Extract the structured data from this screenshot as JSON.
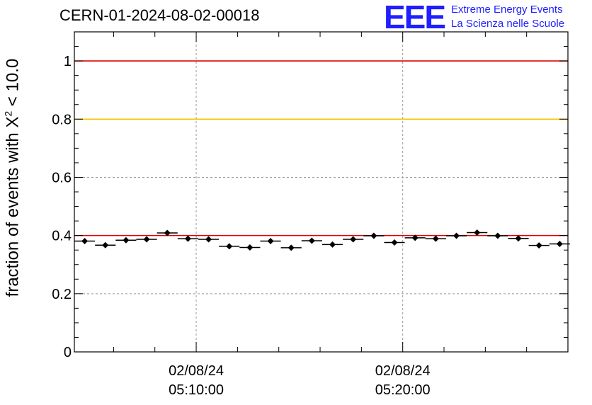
{
  "header": {
    "run_id": "CERN-01-2024-08-02-00018",
    "logo_mark": "EEE",
    "logo_line1": "Extreme Energy Events",
    "logo_line2": "La Scienza nelle Scuole"
  },
  "chart_data": {
    "type": "scatter",
    "title": "CERN-01-2024-08-02-00018",
    "ylabel_prefix": "fraction of events with X",
    "ylabel_exponent": "2",
    "ylabel_suffix": " < 10.0",
    "xlabel": "",
    "x_unit": "minutes",
    "xlim": [
      2.1,
      26.0
    ],
    "ylim": [
      0,
      1.1
    ],
    "y_ticks": [
      {
        "value": 0,
        "label": "0"
      },
      {
        "value": 0.2,
        "label": "0.2"
      },
      {
        "value": 0.4,
        "label": "0.4"
      },
      {
        "value": 0.6,
        "label": "0.6"
      },
      {
        "value": 0.8,
        "label": "0.8"
      },
      {
        "value": 1.0,
        "label": "1"
      }
    ],
    "x_ticks": [
      {
        "value": 8.0,
        "date": "02/08/24",
        "time": "05:10:00"
      },
      {
        "value": 18.0,
        "date": "02/08/24",
        "time": "05:20:00"
      }
    ],
    "reference_lines": [
      {
        "y": 1.0,
        "color": "#e00000"
      },
      {
        "y": 0.8,
        "color": "#f5c400"
      },
      {
        "y": 0.4,
        "color": "#e00000"
      }
    ],
    "grid": true,
    "x_halfwidth": 0.5,
    "series": [
      {
        "x": [
          2.6,
          3.6,
          4.6,
          5.6,
          6.6,
          7.6,
          8.6,
          9.6,
          10.6,
          11.6,
          12.6,
          13.6,
          14.6,
          15.6,
          16.6,
          17.6,
          18.6,
          19.6,
          20.6,
          21.6,
          22.6,
          23.6,
          24.6,
          25.6
        ],
        "y": [
          0.381,
          0.367,
          0.384,
          0.387,
          0.409,
          0.389,
          0.387,
          0.363,
          0.359,
          0.381,
          0.358,
          0.382,
          0.369,
          0.387,
          0.399,
          0.376,
          0.392,
          0.389,
          0.399,
          0.41,
          0.399,
          0.39,
          0.366,
          0.371
        ]
      }
    ]
  }
}
